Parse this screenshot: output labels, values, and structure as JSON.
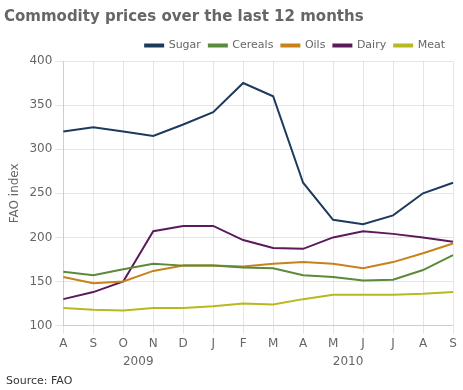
{
  "chart_data": {
    "type": "line",
    "title": "Commodity prices over the last 12 months",
    "ylabel": "FAO index",
    "source": "Source: FAO",
    "categories": [
      "A",
      "S",
      "O",
      "N",
      "D",
      "J",
      "F",
      "M",
      "A",
      "M",
      "J",
      "J",
      "A",
      "S"
    ],
    "series": [
      {
        "name": "Sugar",
        "color": "#1c3a5e",
        "values": [
          320,
          325,
          320,
          315,
          328,
          342,
          375,
          360,
          262,
          220,
          215,
          225,
          250,
          262
        ]
      },
      {
        "name": "Cereals",
        "color": "#5a8a3a",
        "values": [
          161,
          157,
          164,
          170,
          168,
          168,
          166,
          165,
          157,
          155,
          151,
          152,
          163,
          180
        ]
      },
      {
        "name": "Oils",
        "color": "#c8821a",
        "values": [
          155,
          148,
          150,
          162,
          168,
          168,
          167,
          170,
          172,
          170,
          165,
          172,
          182,
          193
        ]
      },
      {
        "name": "Dairy",
        "color": "#5c1a5c",
        "values": [
          130,
          138,
          150,
          207,
          213,
          213,
          197,
          188,
          187,
          200,
          207,
          204,
          200,
          195
        ]
      },
      {
        "name": "Meat",
        "color": "#b8b820",
        "values": [
          120,
          118,
          117,
          120,
          120,
          122,
          125,
          124,
          130,
          135,
          135,
          135,
          136,
          138
        ]
      }
    ],
    "ylim": [
      100,
      400
    ],
    "yticks": [
      100,
      150,
      200,
      250,
      300,
      350,
      400
    ],
    "grid": true,
    "legend": "upper right",
    "annotations": [
      {
        "text": "2009",
        "x": 2.5
      },
      {
        "text": "2010",
        "x": 9.5
      }
    ]
  }
}
